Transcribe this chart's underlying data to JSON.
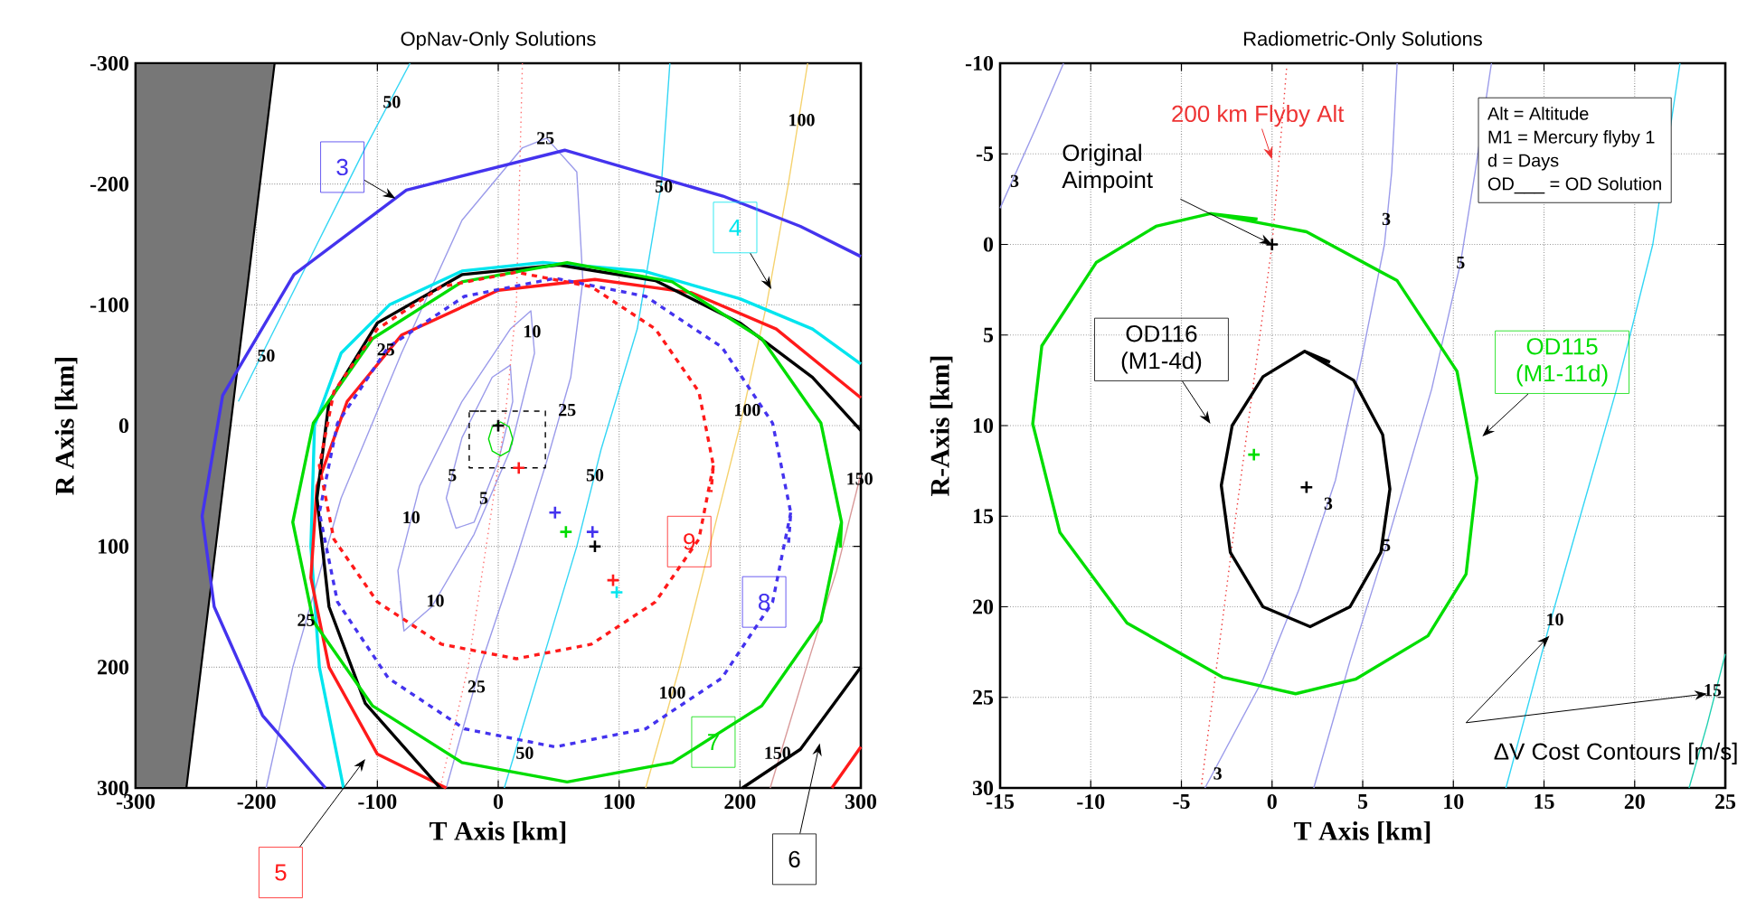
{
  "chart_data": [
    {
      "type": "line",
      "title": "OpNav-Only Solutions",
      "xlabel": "T Axis [km]",
      "ylabel": "R Axis [km]",
      "xlim": [
        -300,
        300
      ],
      "ylim": [
        300,
        -300
      ],
      "xticks": [
        -300,
        -200,
        -100,
        0,
        100,
        200,
        300
      ],
      "yticks": [
        -300,
        -200,
        -100,
        0,
        100,
        200,
        300
      ],
      "grid": true,
      "series": [
        {
          "type": "area",
          "color": "#777777",
          "x": [
            -300,
            -185,
            -258,
            -300
          ],
          "values": [
            -300,
            -300,
            300,
            300
          ]
        },
        {
          "color": "#9b9bea",
          "x": [
            -192,
            -170,
            -130,
            -80,
            -30,
            20,
            40,
            65,
            70,
            60,
            40,
            15,
            -15,
            -43
          ],
          "values": [
            300,
            200,
            60,
            -60,
            -170,
            -230,
            -238,
            -210,
            -120,
            -40,
            30,
            110,
            200,
            300
          ]
        },
        {
          "color": "#9b9bea",
          "x": [
            -78,
            -83,
            -65,
            -30,
            10,
            27,
            30,
            10,
            -20,
            -55,
            -78,
            -81
          ],
          "values": [
            170,
            120,
            50,
            -20,
            -80,
            -95,
            -60,
            20,
            90,
            150,
            170,
            145
          ]
        },
        {
          "color": "#9b9bea",
          "x": [
            -35,
            -43,
            -30,
            -5,
            10,
            12,
            0,
            -20,
            -35,
            -40
          ],
          "values": [
            85,
            60,
            10,
            -40,
            -50,
            -20,
            30,
            80,
            85,
            70
          ]
        },
        {
          "color": "#33d6f5",
          "x": [
            -73,
            -110,
            -150,
            -190,
            -215
          ],
          "values": [
            -300,
            -230,
            -150,
            -70,
            -20
          ]
        },
        {
          "color": "#33d6f5",
          "x": [
            142,
            135,
            115,
            85,
            65,
            35,
            5
          ],
          "values": [
            -300,
            -200,
            -80,
            20,
            100,
            200,
            300
          ]
        },
        {
          "color": "#f5d26e",
          "x": [
            256,
            240,
            222,
            200,
            175,
            150,
            122
          ],
          "values": [
            -300,
            -200,
            -100,
            0,
            100,
            200,
            300
          ]
        },
        {
          "color": "#d99a9a",
          "x": [
            300,
            280,
            255,
            225
          ],
          "values": [
            40,
            120,
            200,
            300
          ]
        },
        {
          "color": "#ff7070",
          "line_style": "dotted",
          "x": [
            20,
            15,
            5,
            -10,
            -25,
            -48
          ],
          "values": [
            -300,
            -100,
            0,
            100,
            200,
            300
          ]
        },
        {
          "name": "3",
          "color": "#4433ee",
          "x": [
            -143,
            -195,
            -235,
            -245,
            -228,
            -169,
            -76,
            55,
            186,
            250,
            300
          ],
          "values": [
            300,
            240,
            150,
            75,
            -25,
            -125,
            -195,
            -228,
            -190,
            -165,
            -140
          ]
        },
        {
          "name": "4",
          "color": "#00e5ee",
          "x": [
            -128,
            -148,
            -155,
            -152,
            -130,
            -90,
            -30,
            37,
            120,
            200,
            260,
            300
          ],
          "values": [
            300,
            200,
            100,
            0,
            -60,
            -100,
            -128,
            -135,
            -128,
            -105,
            -80,
            -51
          ]
        },
        {
          "name": "5",
          "color": "#ff1a1a",
          "x": [
            -43,
            -100,
            -140,
            -155,
            -150,
            -125,
            -80,
            0,
            80,
            160,
            230,
            300,
            290,
            276,
            300
          ],
          "values": [
            300,
            272,
            200,
            126,
            50,
            -20,
            -75,
            -112,
            -121,
            -110,
            -80,
            -23,
            null,
            300,
            266
          ]
        },
        {
          "name": "6",
          "color": "#000000",
          "x": [
            -48,
            -110,
            -140,
            -150,
            -140,
            -100,
            -30,
            50,
            130,
            200,
            260,
            300,
            250,
            202,
            250,
            300
          ],
          "values": [
            300,
            230,
            150,
            60,
            -20,
            -85,
            -125,
            -133,
            -120,
            -85,
            -40,
            4,
            null,
            300,
            268,
            200
          ]
        },
        {
          "name": "7",
          "color": "#00dd00",
          "x": [
            284,
            267,
            218,
            144,
            57,
            -30,
            -104,
            -153,
            -170,
            -153,
            -104,
            -30,
            57,
            144,
            218,
            267,
            284,
            283
          ],
          "values": [
            80,
            162,
            232,
            279,
            295,
            279,
            232,
            162,
            80,
            -2,
            -72,
            -119,
            -135,
            -119,
            -72,
            -2,
            80,
            101
          ]
        },
        {
          "name": "8",
          "color": "#4433ee",
          "line_style": "dashed",
          "x": [
            242,
            227,
            185,
            122,
            47,
            -28,
            -91,
            -133,
            -148,
            -133,
            -91,
            -28,
            47,
            122,
            185,
            227,
            242,
            240
          ],
          "values": [
            72,
            146,
            209,
            251,
            266,
            251,
            209,
            146,
            72,
            -2,
            -65,
            -107,
            -122,
            -107,
            -65,
            -2,
            72,
            100
          ]
        },
        {
          "name": "9",
          "color": "#ff1a1a",
          "line_style": "dashed",
          "x": [
            178,
            166,
            130,
            77,
            15,
            -47,
            -100,
            -136,
            -148,
            -136,
            -100,
            -47,
            15,
            77,
            130,
            166,
            178,
            176
          ],
          "values": [
            33,
            94,
            146,
            181,
            193,
            181,
            146,
            94,
            33,
            -28,
            -80,
            -115,
            -127,
            -115,
            -80,
            -28,
            33,
            55
          ]
        },
        {
          "color": "#00dd00",
          "x": [
            12,
            9,
            2,
            -5,
            -8,
            -5,
            2,
            9,
            12,
            11
          ],
          "values": [
            11,
            21,
            25,
            21,
            11,
            1,
            -3,
            1,
            11,
            16
          ]
        },
        {
          "color": "#000000",
          "line_style": "dashed",
          "x": [
            -24,
            39,
            39,
            -24,
            -24,
            -10
          ],
          "values": [
            -12,
            -12,
            35,
            35,
            -12,
            -12
          ]
        },
        {
          "type": "scatter",
          "marker": "cross",
          "color": "#000000",
          "x": [
            0,
            80
          ],
          "values": [
            0,
            100
          ]
        },
        {
          "type": "scatter",
          "marker": "cross",
          "color": "#4433ee",
          "x": [
            47,
            78
          ],
          "values": [
            72,
            88
          ]
        },
        {
          "type": "scatter",
          "marker": "cross",
          "color": "#00dd00",
          "x": [
            56
          ],
          "values": [
            88
          ]
        },
        {
          "type": "scatter",
          "marker": "cross",
          "color": "#ff1a1a",
          "x": [
            95,
            17
          ],
          "values": [
            128,
            35
          ]
        },
        {
          "type": "scatter",
          "marker": "cross",
          "color": "#00e5ee",
          "x": [
            98
          ],
          "values": [
            138
          ]
        }
      ],
      "annotations": [
        {
          "text": "50",
          "x": -88,
          "y": -268
        },
        {
          "text": "25",
          "x": 39,
          "y": -238
        },
        {
          "text": "50",
          "x": 137,
          "y": -198
        },
        {
          "text": "100",
          "x": 251,
          "y": -253
        },
        {
          "text": "50",
          "x": -192,
          "y": -58
        },
        {
          "text": "10",
          "x": 28,
          "y": -78
        },
        {
          "text": "25",
          "x": -93,
          "y": -63
        },
        {
          "text": "25",
          "x": 57,
          "y": -13
        },
        {
          "text": "100",
          "x": 206,
          "y": -13
        },
        {
          "text": "150",
          "x": 299,
          "y": 44
        },
        {
          "text": "5",
          "x": -38,
          "y": 41
        },
        {
          "text": "5",
          "x": -12,
          "y": 60
        },
        {
          "text": "50",
          "x": 80,
          "y": 41
        },
        {
          "text": "10",
          "x": -72,
          "y": 76
        },
        {
          "text": "10",
          "x": -52,
          "y": 145
        },
        {
          "text": "25",
          "x": -159,
          "y": 161
        },
        {
          "text": "25",
          "x": -18,
          "y": 216
        },
        {
          "text": "100",
          "x": 144,
          "y": 221
        },
        {
          "text": "50",
          "x": 22,
          "y": 271
        },
        {
          "text": "150",
          "x": 231,
          "y": 271
        }
      ]
    },
    {
      "type": "line",
      "title": "Radiometric-Only Solutions",
      "xlabel": "T Axis [km]",
      "ylabel": "R-Axis [km]",
      "xlim": [
        -15,
        25
      ],
      "ylim": [
        30,
        -10
      ],
      "xticks": [
        -15,
        -10,
        -5,
        0,
        5,
        10,
        15,
        20,
        25
      ],
      "yticks": [
        -10,
        -5,
        0,
        5,
        10,
        15,
        20,
        25,
        30
      ],
      "grid": true,
      "series": [
        {
          "color": "#9b9bea",
          "x": [
            -15,
            -13,
            -11.5
          ],
          "values": [
            -2,
            -6.5,
            -10
          ]
        },
        {
          "color": "#9b9bea",
          "x": [
            6.9,
            6.6,
            6.2,
            5,
            3.5,
            1.5,
            -0.5,
            -3.7
          ],
          "values": [
            -10,
            -4,
            0,
            6,
            13,
            19,
            24,
            30
          ]
        },
        {
          "color": "#9b9bea",
          "x": [
            12.1,
            11.2,
            10.4,
            8.8,
            6.3,
            4.3,
            2.3
          ],
          "values": [
            -10,
            -4,
            1,
            8,
            16.6,
            23,
            30
          ]
        },
        {
          "color": "#33d6f5",
          "x": [
            22.5,
            21,
            19,
            17,
            15.3,
            12.9
          ],
          "values": [
            -10,
            0,
            8,
            15,
            21,
            30
          ]
        },
        {
          "color": "#20d0b0",
          "x": [
            23,
            24,
            25
          ],
          "values": [
            30,
            26.5,
            22.6
          ]
        },
        {
          "name": "200 km Flyby Alt",
          "color": "#ee3333",
          "line_style": "dotted",
          "x": [
            0.8,
            0,
            -2,
            -3.9
          ],
          "values": [
            -9.7,
            0,
            15,
            29.9
          ]
        },
        {
          "name": "OD116 (M1-4d)",
          "color": "#000000",
          "x": [
            1.8,
            4.5,
            6.1,
            6.5,
            6,
            4.3,
            2.1,
            -0.5,
            -2.3,
            -2.8,
            -2.2,
            -0.5,
            1.8,
            3.2
          ],
          "values": [
            5.9,
            7.5,
            10.5,
            13.5,
            17,
            20,
            21.1,
            20,
            17,
            13.3,
            10,
            7.3,
            5.9,
            6.5
          ]
        },
        {
          "name": "OD115 (M1-11d)",
          "color": "#00dd00",
          "x": [
            -3.4,
            1.9,
            6.9,
            10.2,
            11.3,
            10.7,
            8.6,
            4.6,
            1.3,
            -2.7,
            -8,
            -11.7,
            -13.2,
            -12.7,
            -9.7,
            -6.4,
            -3.4,
            -0.8
          ],
          "values": [
            -1.7,
            -0.7,
            2,
            7,
            12.9,
            18.2,
            21.6,
            24,
            24.8,
            23.9,
            20.9,
            15.9,
            9.9,
            5.6,
            1,
            -1,
            -1.7,
            -1.4
          ]
        },
        {
          "type": "scatter",
          "marker": "cross",
          "color": "#000000",
          "x": [
            0,
            1.9
          ],
          "values": [
            0,
            13.4
          ]
        },
        {
          "type": "scatter",
          "marker": "cross",
          "color": "#00dd00",
          "x": [
            -1
          ],
          "values": [
            11.6
          ]
        }
      ],
      "annotations": [
        {
          "text": "3",
          "x": -14.2,
          "y": -3.5
        },
        {
          "text": "3",
          "x": 6.3,
          "y": -1.4
        },
        {
          "text": "5",
          "x": 10.4,
          "y": 1
        },
        {
          "text": "3",
          "x": 3.1,
          "y": 14.3
        },
        {
          "text": "5",
          "x": 6.3,
          "y": 16.6
        },
        {
          "text": "10",
          "x": 15.6,
          "y": 20.7
        },
        {
          "text": "15",
          "x": 24.3,
          "y": 24.6
        },
        {
          "text": "3",
          "x": -3,
          "y": 29.2
        },
        {
          "text": "Original Aimpoint",
          "x": 0,
          "y": 0
        },
        "Alt = Altitude",
        "M1 = Mercury flyby 1",
        "d = Days",
        "OD___ = OD Solution",
        "ΔV Cost Contours [m/s]"
      ]
    }
  ]
}
